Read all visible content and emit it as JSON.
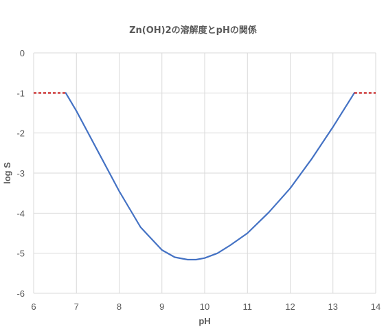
{
  "chart_data": {
    "type": "line",
    "title": "Zn(OH)2の溶解度とpHの関係",
    "xlabel": "pH",
    "ylabel": "log S",
    "xlim": [
      6,
      14
    ],
    "ylim": [
      -6,
      0
    ],
    "x_ticks": [
      6,
      7,
      8,
      9,
      10,
      11,
      12,
      13,
      14
    ],
    "y_ticks": [
      0,
      -1,
      -2,
      -3,
      -4,
      -5,
      -6
    ],
    "grid": true,
    "legend": "none",
    "colors": {
      "curve": "#4472c4",
      "cap": "#c00000",
      "grid": "#d9d9d9",
      "text": "#595959"
    },
    "series": [
      {
        "style": "solid",
        "color": "#4472c4",
        "x": [
          6.75,
          7.0,
          7.5,
          8.0,
          8.5,
          9.0,
          9.3,
          9.6,
          9.8,
          10.0,
          10.3,
          10.6,
          11.0,
          11.5,
          12.0,
          12.5,
          13.0,
          13.5
        ],
        "y": [
          -1.0,
          -1.45,
          -2.45,
          -3.45,
          -4.35,
          -4.92,
          -5.1,
          -5.16,
          -5.16,
          -5.12,
          -5.0,
          -4.8,
          -4.5,
          -3.98,
          -3.38,
          -2.65,
          -1.85,
          -1.0
        ]
      },
      {
        "style": "dashed",
        "color": "#c00000",
        "x": [
          6.0,
          6.75
        ],
        "y": [
          -1.0,
          -1.0
        ]
      },
      {
        "style": "dashed",
        "color": "#c00000",
        "x": [
          13.5,
          14.0
        ],
        "y": [
          -1.0,
          -1.0
        ]
      }
    ]
  }
}
